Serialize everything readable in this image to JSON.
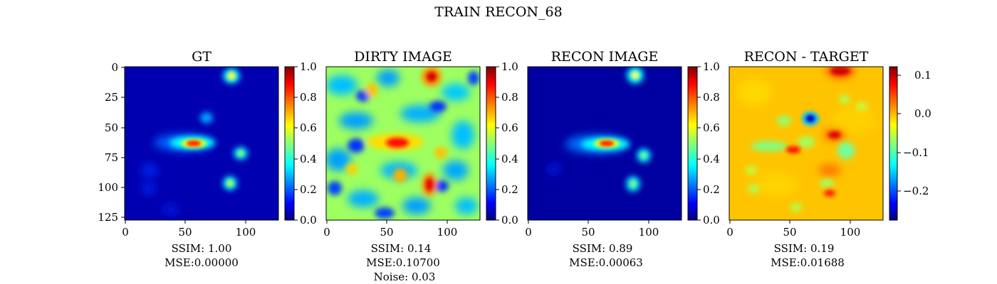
{
  "figure": {
    "title": "TRAIN RECON_68"
  },
  "colormap": [
    "#00007f",
    "#0000ff",
    "#00ffff",
    "#ffff00",
    "#ff0000",
    "#7f0000"
  ],
  "chart_data": [
    {
      "type": "heatmap",
      "title": "GT",
      "xlim": [
        0,
        127
      ],
      "ylim": [
        127,
        0
      ],
      "xticks": [
        "0",
        "50",
        "100"
      ],
      "yticks": [
        "0",
        "25",
        "50",
        "75",
        "100",
        "125"
      ],
      "colorbar": {
        "min": 0.0,
        "max": 1.0,
        "ticks": [
          "0.0",
          "0.2",
          "0.4",
          "0.6",
          "0.8",
          "1.0"
        ]
      },
      "background_value": 0.06,
      "caption": [
        "SSIM: 1.00",
        "MSE:0.00000"
      ]
    },
    {
      "type": "heatmap",
      "title": "DIRTY IMAGE",
      "xlim": [
        0,
        127
      ],
      "ylim": [
        127,
        0
      ],
      "xticks": [
        "0",
        "50",
        "100"
      ],
      "colorbar": {
        "min": 0.0,
        "max": 1.0,
        "ticks": [
          "0.0",
          "0.2",
          "0.4",
          "0.6",
          "0.8",
          "1.0"
        ]
      },
      "background_value": 0.5,
      "caption": [
        "SSIM: 0.14",
        "MSE:0.10700",
        "Noise: 0.03"
      ]
    },
    {
      "type": "heatmap",
      "title": "RECON IMAGE",
      "xlim": [
        0,
        127
      ],
      "ylim": [
        127,
        0
      ],
      "xticks": [
        "0",
        "50",
        "100"
      ],
      "colorbar": {
        "min": 0.0,
        "max": 1.0,
        "ticks": [
          "0.0",
          "0.2",
          "0.4",
          "0.6",
          "0.8",
          "1.0"
        ]
      },
      "background_value": 0.02,
      "caption": [
        "SSIM: 0.89",
        "MSE:0.00063"
      ]
    },
    {
      "type": "heatmap",
      "title": "RECON - TARGET",
      "xlim": [
        0,
        127
      ],
      "ylim": [
        127,
        0
      ],
      "xticks": [
        "0",
        "50",
        "100"
      ],
      "colorbar": {
        "min": -0.28,
        "max": 0.125,
        "ticks": [
          "0.1",
          "0.0",
          "−0.1",
          "−0.2"
        ]
      },
      "background_value": 0.0,
      "caption": [
        "SSIM: 0.19",
        "MSE:0.01688"
      ]
    }
  ]
}
